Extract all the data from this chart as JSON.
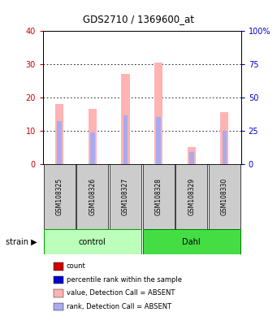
{
  "title": "GDS2710 / 1369600_at",
  "samples": [
    "GSM108325",
    "GSM108326",
    "GSM108327",
    "GSM108328",
    "GSM108329",
    "GSM108330"
  ],
  "bar_values": [
    18,
    16.5,
    27,
    30.5,
    5,
    15.5
  ],
  "rank_values": [
    13,
    9.5,
    14.5,
    14,
    3.5,
    10
  ],
  "ylim_left": [
    0,
    40
  ],
  "ylim_right": [
    0,
    100
  ],
  "yticks_left": [
    0,
    10,
    20,
    30,
    40
  ],
  "yticks_right": [
    0,
    25,
    50,
    75,
    100
  ],
  "yticklabels_right": [
    "0",
    "25",
    "50",
    "75",
    "100%"
  ],
  "bar_color": "#ffb3b3",
  "rank_color": "#aaaaee",
  "left_tick_color": "#cc0000",
  "right_tick_color": "#0000cc",
  "groups_info": [
    {
      "name": "control",
      "start": 0,
      "end": 2,
      "color": "#bbffbb",
      "edgecolor": "#009900"
    },
    {
      "name": "Dahl",
      "start": 3,
      "end": 5,
      "color": "#44dd44",
      "edgecolor": "#007700"
    }
  ],
  "legend_items": [
    {
      "color": "#cc0000",
      "label": "count"
    },
    {
      "color": "#0000cc",
      "label": "percentile rank within the sample"
    },
    {
      "color": "#ffb3b3",
      "label": "value, Detection Call = ABSENT"
    },
    {
      "color": "#aaaaee",
      "label": "rank, Detection Call = ABSENT"
    }
  ]
}
